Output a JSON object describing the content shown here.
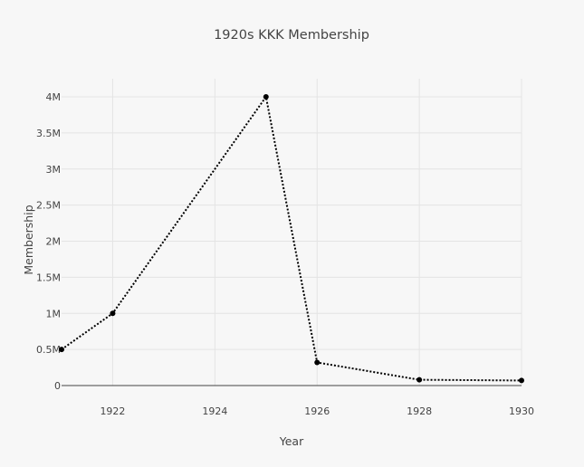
{
  "chart_data": {
    "type": "line",
    "title": "1920s KKK Membership",
    "xlabel": "Year",
    "ylabel": "Membership",
    "xlim": [
      1921,
      1930
    ],
    "ylim": [
      0,
      4000000
    ],
    "x_ticks": [
      1922,
      1924,
      1926,
      1928,
      1930
    ],
    "y_ticks": [
      {
        "value": 0,
        "label": "0"
      },
      {
        "value": 500000,
        "label": "0.5M"
      },
      {
        "value": 1000000,
        "label": "1M"
      },
      {
        "value": 1500000,
        "label": "1.5M"
      },
      {
        "value": 2000000,
        "label": "2M"
      },
      {
        "value": 2500000,
        "label": "2.5M"
      },
      {
        "value": 3000000,
        "label": "3M"
      },
      {
        "value": 3500000,
        "label": "3.5M"
      },
      {
        "value": 4000000,
        "label": "4M"
      }
    ],
    "grid": true,
    "line_style": "dotted",
    "line_color": "#000000",
    "series": [
      {
        "x": [
          1921,
          1922,
          1925,
          1926,
          1928,
          1930
        ],
        "y": [
          500000,
          1000000,
          4000000,
          320000,
          80000,
          70000
        ]
      }
    ]
  }
}
